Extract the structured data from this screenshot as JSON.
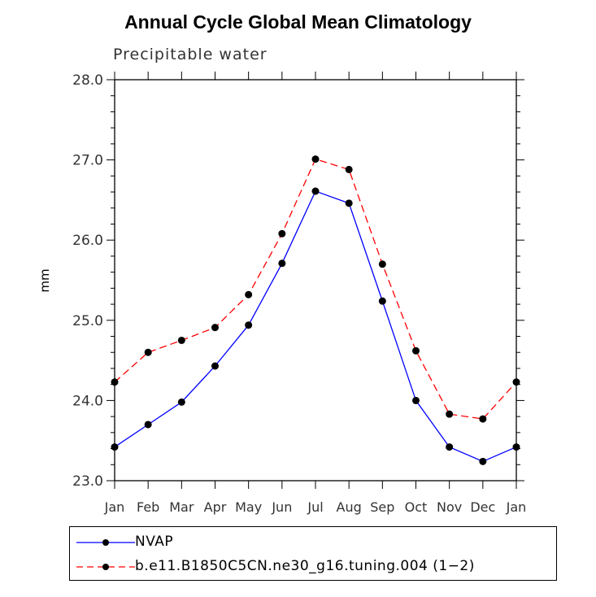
{
  "chart_data": {
    "type": "line",
    "title": "Annual Cycle Global Mean Climatology",
    "subtitle": "Precipitable water",
    "ylabel": "mm",
    "xlabel": "",
    "categories": [
      "Jan",
      "Feb",
      "Mar",
      "Apr",
      "May",
      "Jun",
      "Jul",
      "Aug",
      "Sep",
      "Oct",
      "Nov",
      "Dec",
      "Jan"
    ],
    "ylim": [
      23.0,
      28.0
    ],
    "yticks": [
      "23.0",
      "24.0",
      "25.0",
      "26.0",
      "27.0",
      "28.0"
    ],
    "series": [
      {
        "name": "NVAP",
        "color": "#0000ff",
        "dash": "solid",
        "values": [
          23.42,
          23.7,
          23.98,
          24.43,
          24.94,
          25.71,
          26.61,
          26.46,
          25.24,
          24.0,
          23.42,
          23.24,
          23.42
        ]
      },
      {
        "name": "b.e11.B1850C5CN.ne30_g16.tuning.004 (1−2)",
        "color": "#ff0000",
        "dash": "dashed",
        "values": [
          24.23,
          24.6,
          24.75,
          24.91,
          25.32,
          26.08,
          27.01,
          26.88,
          25.7,
          24.62,
          23.83,
          23.77,
          24.23
        ]
      }
    ]
  }
}
